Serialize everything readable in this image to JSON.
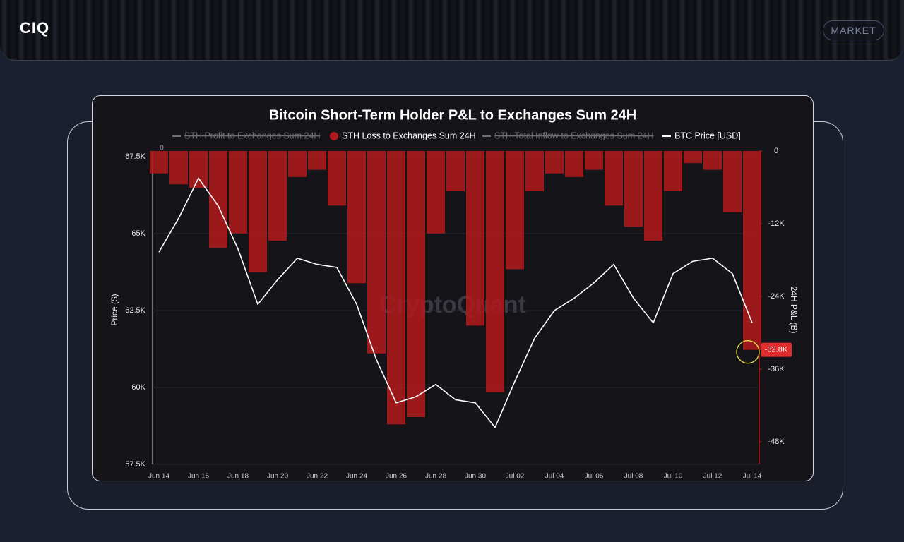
{
  "header": {
    "logo": "CIQ",
    "button": "MARKET"
  },
  "chart_data": {
    "type": "line",
    "title": "Bitcoin Short-Term Holder P&L to Exchanges Sum 24H",
    "y_label": "Price ($)",
    "y2_label": "24H P&L (B)",
    "watermark": "CryptoQuant",
    "annotations": [
      {
        "text": "0"
      }
    ],
    "x": [
      "Jun 14",
      null,
      "Jun 16",
      null,
      "Jun 18",
      null,
      "Jun 20",
      null,
      "Jun 22",
      null,
      "Jun 24",
      null,
      "Jun 26",
      null,
      "Jun 28",
      null,
      "Jun 30",
      null,
      "Jul 02",
      null,
      "Jul 04",
      null,
      "Jul 06",
      null,
      "Jul 08",
      null,
      "Jul 10",
      null,
      "Jul 12",
      null,
      "Jul 14"
    ],
    "ylim": [
      57500,
      67500
    ],
    "yticks": [
      {
        "value": 57500,
        "label": "57.5K"
      },
      {
        "value": 60000,
        "label": "60K"
      },
      {
        "value": 62500,
        "label": "62.5K"
      },
      {
        "value": 65000,
        "label": "65K"
      },
      {
        "value": 67500,
        "label": "67.5K"
      }
    ],
    "y2lim": [
      -51700,
      0
    ],
    "y2ticks": [
      0,
      {
        "value": -12000,
        "label": "-12K"
      },
      {
        "value": -24000,
        "label": "-24K"
      },
      {
        "value": -36000,
        "label": "-36K"
      },
      {
        "value": -48000,
        "label": "-48K"
      }
    ],
    "series": [
      {
        "name": "STH Profit to Exchanges Sum 24H",
        "color": "#888888",
        "hidden": true
      },
      {
        "name": "STH Loss to Exchanges Sum 24H",
        "color": "#b3191c",
        "type": "bar",
        "axis": "y2",
        "values": [
          -3700,
          -5500,
          -6100,
          -16000,
          -13600,
          -20000,
          -14800,
          -4300,
          -3100,
          -9000,
          -21800,
          -33400,
          -45100,
          -43900,
          -13600,
          -6600,
          -28800,
          -39800,
          -19500,
          -6600,
          -3700,
          -4300,
          -3100,
          -9000,
          -12500,
          -14800,
          -6600,
          -2000,
          -3100,
          -10100,
          -32800
        ],
        "value_labels": [
          null,
          null,
          null,
          null,
          null,
          null,
          null,
          null,
          null,
          null,
          null,
          null,
          null,
          null,
          null,
          null,
          null,
          null,
          null,
          null,
          null,
          null,
          null,
          null,
          null,
          null,
          null,
          null,
          null,
          null,
          "-32.8K"
        ]
      },
      {
        "name": "STH Total Inflow to Exchanges Sum 24H",
        "color": "#888888",
        "hidden": true
      },
      {
        "name": "BTC Price [USD]",
        "color": "#ffffff",
        "type": "line",
        "values": [
          64400,
          65500,
          66800,
          65900,
          64500,
          62700,
          63500,
          64200,
          64000,
          63900,
          62700,
          60900,
          59500,
          59700,
          60100,
          59600,
          59500,
          58700,
          60200,
          61600,
          62500,
          62900,
          63400,
          64000,
          62900,
          62100,
          63700,
          64100,
          64200,
          63700,
          62100
        ]
      }
    ]
  }
}
